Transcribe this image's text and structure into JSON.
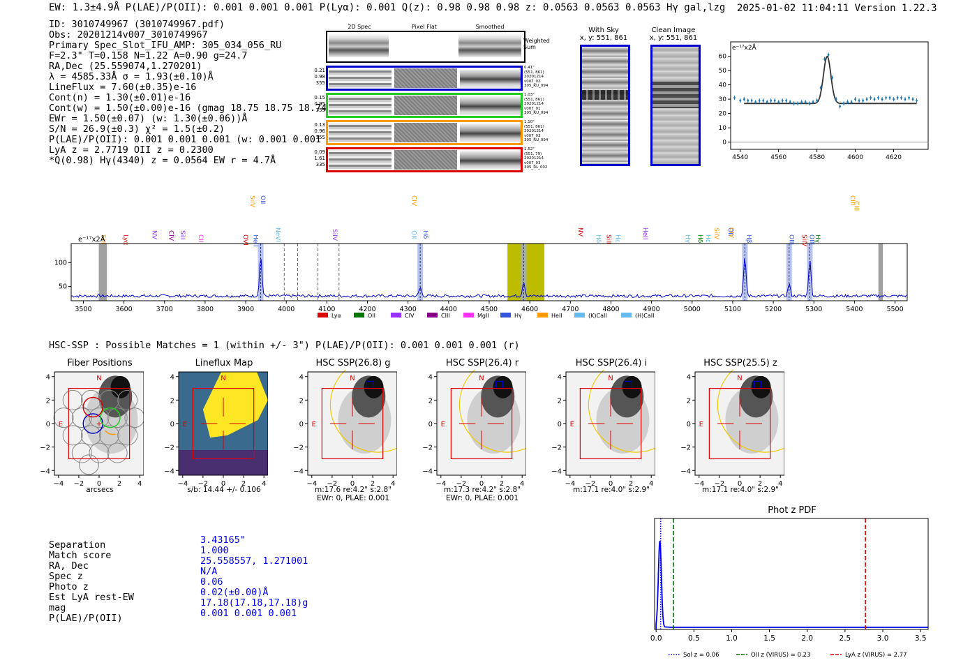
{
  "header": {
    "left": "EW: 1.3±4.9Å  P(LAE)/P(OII): 0.001 0.001 0.001  P(Lyα): 0.001  Q(z): 0.98 0.98 0.98  z: 0.0563 0.0563 0.0563 Hγ  gal,lzg",
    "right": "2025-01-02 11:04:11  Version 1.22.3"
  },
  "info": [
    "ID: 3010749967 (3010749967.pdf)",
    "Obs: 20201214v007_3010749967",
    "Primary Spec_Slot_IFU_AMP: 305_034_056_RU",
    "F=2.3\"  T=0.158  N=1.22  A=0.90  g=24.7",
    "RA,Dec (25.559074,1.270201)",
    "λ = 4585.33Å  σ = 1.93(±0.10)Å",
    "LineFlux = 7.60(±0.35)e-16",
    "Cont(n) = 1.30(±0.01)e-16",
    "Cont(w) = 1.50(±0.00)e-16 (gmag 18.75 18.75 18.74)",
    "EWr = 1.50(±0.07) (w: 1.30(±0.06))Å",
    "S/N = 26.9(±0.3)  χ² = 1.5(±0.2)",
    "P(LAE)/P(OII): 0.001 0.001 0.001 (w: 0.001 0.001 0.001)",
    "LyA z = 2.7719  OII z = 0.2300",
    "*Q(0.98) Hγ(4340) z = 0.0564  EW r = 4.7Å"
  ],
  "cutouts": {
    "col_titles": [
      "2D Spec",
      "Pixel Flat",
      "Smoothed"
    ],
    "weighted_sum": "Weighted Sum",
    "rows": [
      {
        "left": [
          "0.21",
          "0.98",
          "355"
        ],
        "right": [
          "0.41\"",
          "(551, 861)",
          "20201214",
          "v007_02",
          "305_RU_094"
        ],
        "color": "#0000cc"
      },
      {
        "left": [
          "0.15",
          "0.95",
          "355"
        ],
        "right": [
          "1.03\"",
          "(551, 861)",
          "20201214",
          "v007_01",
          "305_RU_094"
        ],
        "color": "#22cc22"
      },
      {
        "left": [
          "0.13",
          "0.96",
          "355"
        ],
        "right": [
          "1.10\"",
          "(551, 861)",
          "20201214",
          "v007_03",
          "305_RU_094"
        ],
        "color": "#ff9900"
      },
      {
        "left": [
          "0.09",
          "1.61",
          "335"
        ],
        "right": [
          "1.52\"",
          "(551, 79)",
          "20201214",
          "v007_03",
          "305_RL_002"
        ],
        "color": "#dd0000"
      }
    ]
  },
  "with_sky": {
    "title": "With Sky",
    "subtitle": "x, y: 551, 861"
  },
  "clean_image": {
    "title": "Clean Image",
    "subtitle": "x, y: 551, 861"
  },
  "zoom_plot": {
    "ylabel": "e⁻¹⁷x2Å"
  },
  "full_spectrum": {
    "ylabel": "e⁻¹⁷x2Å",
    "line_labels": [
      "SiII",
      "Lyα",
      "NV",
      "CIV",
      "SiII",
      "CII",
      "OVI",
      "HeII",
      "NeVI",
      "SiIV",
      "OII",
      "Hδ",
      "NV",
      "Hδ",
      "SiII",
      "Hε",
      "HeII",
      "Hγ",
      "Hδ",
      "Hε",
      "Hβ",
      "OIII",
      "SiIV",
      "OIII",
      "Hγ",
      "SiIV",
      "OII",
      "CIV",
      "CIII"
    ],
    "legend": [
      "Lyα",
      "OII",
      "CIV",
      "CIII",
      "MgII",
      "Hγ",
      "HeII",
      "(K)CaII",
      "(H)CaII"
    ]
  },
  "hsc": {
    "heading": "HSC-SSP : Possible Matches = 1 (within +/- 3\")  P(LAE)/P(OII): 0.001 0.001 0.001 (r)",
    "panels": [
      {
        "title": "Fiber Positions",
        "xlabel": "arcsecs",
        "line2": ""
      },
      {
        "title": "Lineflux Map",
        "xlabel": "s/b: 14.44 +/- 0.106",
        "line2": ""
      },
      {
        "title": "HSC SSP(26.8) g",
        "xlabel": "m:17.6  re:4.2\"  s:2.8\"",
        "line2": "EWr: 0, PLAE: 0.001"
      },
      {
        "title": "HSC SSP(26.4) r",
        "xlabel": "m:17.3  re:4.2\"  s:2.8\"",
        "line2": "EWr: 0, PLAE: 0.001"
      },
      {
        "title": "HSC SSP(26.4) i",
        "xlabel": "m:17.1  re:4.0\"  s:2.9\"",
        "line2": ""
      },
      {
        "title": "HSC SSP(25.5) z",
        "xlabel": "m:17.1  re:4.0\"  s:2.9\"",
        "line2": ""
      }
    ],
    "compass_n": "N",
    "compass_e": "E"
  },
  "match_table": {
    "labels": [
      "Separation",
      "Match score",
      "RA, Dec",
      "Spec z",
      "Photo z",
      "Est LyA rest-EW",
      "mag",
      "P(LAE)/P(OII)"
    ],
    "values": [
      "3.43165\"",
      "1.000",
      "25.558557, 1.271001",
      "N/A",
      "0.06",
      "0.02(±0.00)Å",
      "17.18(17.18,17.18)g",
      "0.001 0.001 0.001"
    ]
  },
  "chart_data": [
    {
      "type": "scatter",
      "title": "",
      "ylabel": "e-17x2Å",
      "xlim": [
        4535,
        4638
      ],
      "ylim": [
        -5,
        70
      ],
      "xticks": [
        4540,
        4560,
        4580,
        4600,
        4620
      ],
      "yticks": [
        0,
        10,
        20,
        30,
        40,
        50,
        60
      ],
      "x": [
        4537,
        4540,
        4542,
        4544,
        4546,
        4548,
        4550,
        4552,
        4554,
        4556,
        4558,
        4560,
        4562,
        4564,
        4566,
        4568,
        4570,
        4572,
        4574,
        4576,
        4578,
        4580,
        4582,
        4584,
        4586,
        4588,
        4590,
        4592,
        4594,
        4596,
        4598,
        4600,
        4602,
        4604,
        4606,
        4608,
        4610,
        4612,
        4614,
        4616,
        4618,
        4620,
        4622,
        4624,
        4626,
        4628,
        4630,
        4632
      ],
      "values": [
        31,
        29,
        30,
        29,
        29,
        28,
        29,
        29,
        28,
        29,
        29,
        28,
        29,
        29,
        28,
        27,
        27,
        28,
        28,
        27,
        28,
        29,
        38,
        58,
        61,
        45,
        30,
        25,
        27,
        28,
        28,
        30,
        29,
        29,
        30,
        31,
        30,
        31,
        30,
        31,
        31,
        30,
        31,
        31,
        30,
        31,
        30,
        29
      ],
      "fit_baseline": 27,
      "fit_peak": 60,
      "fit_center": 4585.33
    },
    {
      "type": "line",
      "title": "",
      "ylabel": "e-17x2Å",
      "xlim": [
        3470,
        5530
      ],
      "ylim": [
        20,
        140
      ],
      "xticks": [
        3500,
        3600,
        3700,
        3800,
        3900,
        4000,
        4100,
        4200,
        4300,
        4400,
        4500,
        4600,
        4700,
        4800,
        4900,
        5000,
        5100,
        5200,
        5300,
        5400,
        5500
      ],
      "yticks": [
        50,
        100
      ],
      "emission_peaks": [
        {
          "x": 3937,
          "y": 112
        },
        {
          "x": 4330,
          "y": 48
        },
        {
          "x": 4585,
          "y": 60
        },
        {
          "x": 5130,
          "y": 110
        },
        {
          "x": 5239,
          "y": 55
        },
        {
          "x": 5290,
          "y": 105
        }
      ],
      "continuum": 30,
      "legend": [
        "Lyα",
        "OII",
        "CIV",
        "CIII",
        "MgII",
        "Hγ",
        "HeII",
        "(K)CaII",
        "(H)CaII"
      ]
    },
    {
      "type": "line",
      "title": "Phot z PDF",
      "xlim": [
        -0.02,
        3.6
      ],
      "ylim": [
        0,
        1
      ],
      "xticks": [
        0.0,
        0.5,
        1.0,
        1.5,
        2.0,
        2.5,
        3.0,
        3.5
      ],
      "markers": [
        {
          "name": "Sol z = 0.06",
          "z": 0.06,
          "color": "#0000ee",
          "style": "dotted"
        },
        {
          "name": "OII z (VIRUS) = 0.23",
          "z": 0.23,
          "color": "#007700",
          "style": "dashed"
        },
        {
          "name": "LyA z (VIRUS) = 2.77",
          "z": 2.77,
          "color": "#dd0000",
          "style": "dashed"
        }
      ]
    }
  ],
  "photz": {
    "title": "Phot z PDF",
    "legend": [
      "Sol z = 0.06",
      "OII z (VIRUS) = 0.23",
      "LyA z (VIRUS) = 2.77"
    ]
  },
  "colors": {
    "spectrum": "#0000cc",
    "highlight": "#bdbd00",
    "fit": "#333333",
    "scatter": "#1f77b4"
  }
}
